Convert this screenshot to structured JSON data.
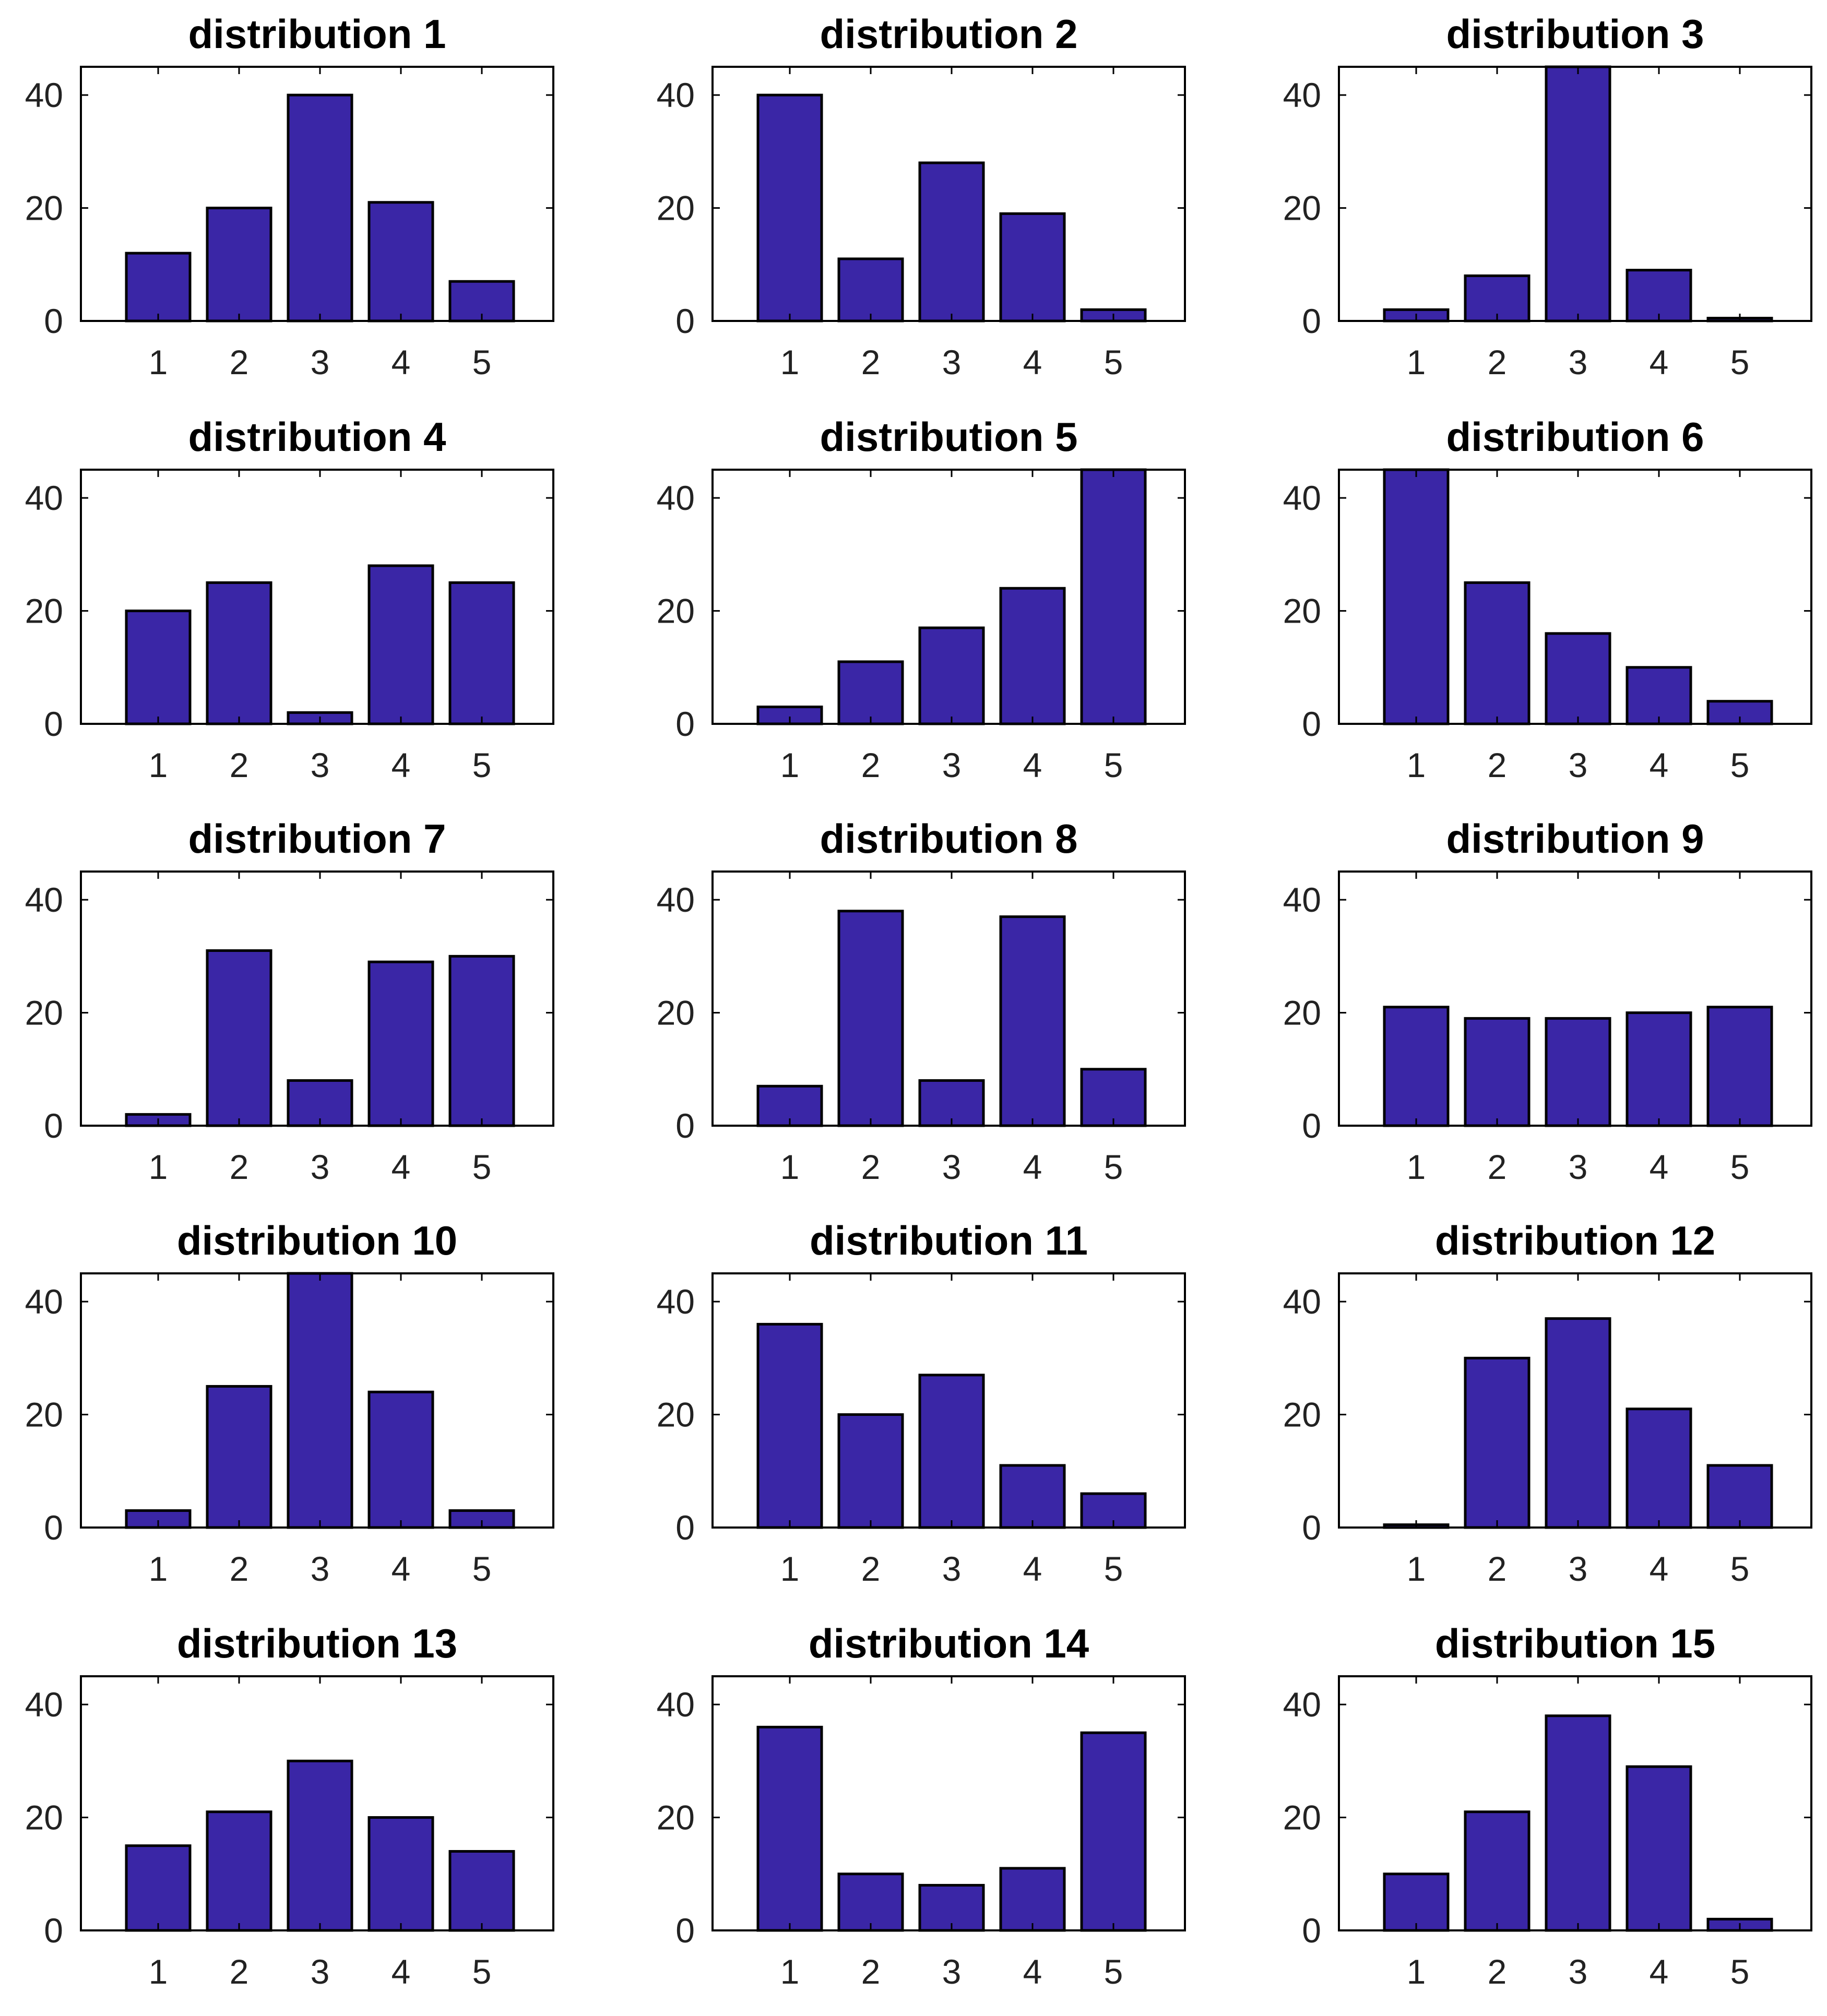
{
  "colors": {
    "bar_fill": "#3a26a6",
    "axes_stroke": "#000000",
    "background": "#ffffff"
  },
  "chart_data": [
    {
      "type": "bar",
      "title": "distribution 1",
      "categories": [
        "1",
        "2",
        "3",
        "4",
        "5"
      ],
      "values": [
        12,
        20,
        40,
        21,
        7
      ],
      "ylim": [
        0,
        45
      ],
      "yticks": [
        "0",
        "20",
        "40"
      ]
    },
    {
      "type": "bar",
      "title": "distribution 2",
      "categories": [
        "1",
        "2",
        "3",
        "4",
        "5"
      ],
      "values": [
        40,
        11,
        28,
        19,
        2
      ],
      "ylim": [
        0,
        45
      ],
      "yticks": [
        "0",
        "20",
        "40"
      ]
    },
    {
      "type": "bar",
      "title": "distribution 3",
      "categories": [
        "1",
        "2",
        "3",
        "4",
        "5"
      ],
      "values": [
        2,
        8,
        45,
        9,
        0.5
      ],
      "ylim": [
        0,
        45
      ],
      "yticks": [
        "0",
        "20",
        "40"
      ]
    },
    {
      "type": "bar",
      "title": "distribution 4",
      "categories": [
        "1",
        "2",
        "3",
        "4",
        "5"
      ],
      "values": [
        20,
        25,
        2,
        28,
        25
      ],
      "ylim": [
        0,
        45
      ],
      "yticks": [
        "0",
        "20",
        "40"
      ]
    },
    {
      "type": "bar",
      "title": "distribution 5",
      "categories": [
        "1",
        "2",
        "3",
        "4",
        "5"
      ],
      "values": [
        3,
        11,
        17,
        24,
        45
      ],
      "ylim": [
        0,
        45
      ],
      "yticks": [
        "0",
        "20",
        "40"
      ]
    },
    {
      "type": "bar",
      "title": "distribution 6",
      "categories": [
        "1",
        "2",
        "3",
        "4",
        "5"
      ],
      "values": [
        45,
        25,
        16,
        10,
        4
      ],
      "ylim": [
        0,
        45
      ],
      "yticks": [
        "0",
        "20",
        "40"
      ]
    },
    {
      "type": "bar",
      "title": "distribution 7",
      "categories": [
        "1",
        "2",
        "3",
        "4",
        "5"
      ],
      "values": [
        2,
        31,
        8,
        29,
        30
      ],
      "ylim": [
        0,
        45
      ],
      "yticks": [
        "0",
        "20",
        "40"
      ]
    },
    {
      "type": "bar",
      "title": "distribution 8",
      "categories": [
        "1",
        "2",
        "3",
        "4",
        "5"
      ],
      "values": [
        7,
        38,
        8,
        37,
        10
      ],
      "ylim": [
        0,
        45
      ],
      "yticks": [
        "0",
        "20",
        "40"
      ]
    },
    {
      "type": "bar",
      "title": "distribution 9",
      "categories": [
        "1",
        "2",
        "3",
        "4",
        "5"
      ],
      "values": [
        21,
        19,
        19,
        20,
        21
      ],
      "ylim": [
        0,
        45
      ],
      "yticks": [
        "0",
        "20",
        "40"
      ]
    },
    {
      "type": "bar",
      "title": "distribution 10",
      "categories": [
        "1",
        "2",
        "3",
        "4",
        "5"
      ],
      "values": [
        3,
        25,
        45,
        24,
        3
      ],
      "ylim": [
        0,
        45
      ],
      "yticks": [
        "0",
        "20",
        "40"
      ]
    },
    {
      "type": "bar",
      "title": "distribution 11",
      "categories": [
        "1",
        "2",
        "3",
        "4",
        "5"
      ],
      "values": [
        36,
        20,
        27,
        11,
        6
      ],
      "ylim": [
        0,
        45
      ],
      "yticks": [
        "0",
        "20",
        "40"
      ]
    },
    {
      "type": "bar",
      "title": "distribution 12",
      "categories": [
        "1",
        "2",
        "3",
        "4",
        "5"
      ],
      "values": [
        0.5,
        30,
        37,
        21,
        11
      ],
      "ylim": [
        0,
        45
      ],
      "yticks": [
        "0",
        "20",
        "40"
      ]
    },
    {
      "type": "bar",
      "title": "distribution 13",
      "categories": [
        "1",
        "2",
        "3",
        "4",
        "5"
      ],
      "values": [
        15,
        21,
        30,
        20,
        14
      ],
      "ylim": [
        0,
        45
      ],
      "yticks": [
        "0",
        "20",
        "40"
      ]
    },
    {
      "type": "bar",
      "title": "distribution 14",
      "categories": [
        "1",
        "2",
        "3",
        "4",
        "5"
      ],
      "values": [
        36,
        10,
        8,
        11,
        35
      ],
      "ylim": [
        0,
        45
      ],
      "yticks": [
        "0",
        "20",
        "40"
      ]
    },
    {
      "type": "bar",
      "title": "distribution 15",
      "categories": [
        "1",
        "2",
        "3",
        "4",
        "5"
      ],
      "values": [
        10,
        21,
        38,
        29,
        2
      ],
      "ylim": [
        0,
        45
      ],
      "yticks": [
        "0",
        "20",
        "40"
      ]
    }
  ]
}
